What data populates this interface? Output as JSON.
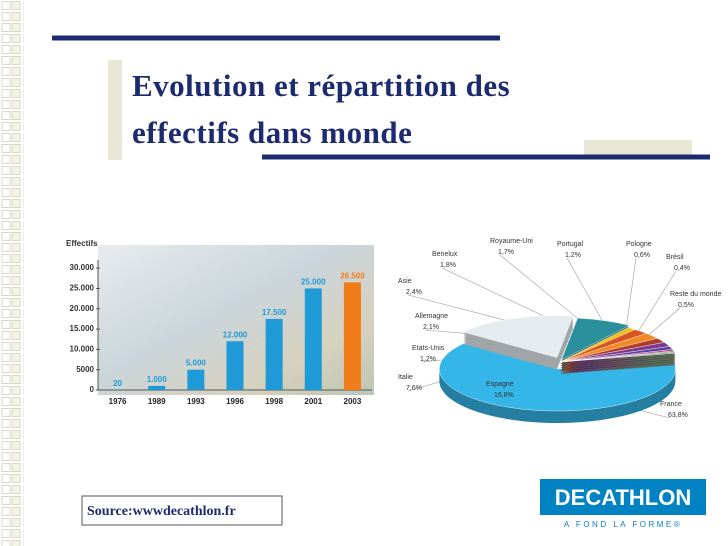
{
  "slide": {
    "title_lines": [
      "Evolution et répartition des",
      "effectifs  dans monde"
    ],
    "source": "Source:wwwdecathlon.fr",
    "logo": {
      "brand": "DECATHLON",
      "tagline": "A FOND LA FORME®"
    }
  },
  "chart_data": [
    {
      "type": "bar",
      "y_label": "Effectifs",
      "categories": [
        "1976",
        "1989",
        "1993",
        "1996",
        "1998",
        "2001",
        "2003"
      ],
      "values": [
        20,
        1000,
        5000,
        12000,
        17500,
        25000,
        26500
      ],
      "value_labels": [
        "20",
        "1.000",
        "5.000",
        "12.000",
        "17.500",
        "25.000",
        "26.500"
      ],
      "colors": [
        "#1f9ad6",
        "#1f9ad6",
        "#1f9ad6",
        "#1f9ad6",
        "#1f9ad6",
        "#1f9ad6",
        "#f07d1a"
      ],
      "ylim": [
        0,
        32000
      ],
      "yticks": [
        0,
        5000,
        {
          "value": 10000,
          "label": "10.000"
        },
        {
          "value": 15000,
          "label": "15.000"
        },
        {
          "value": 20000,
          "label": "20.000"
        },
        {
          "value": 25000,
          "label": "25.000"
        },
        {
          "value": 30000,
          "label": "30.000"
        }
      ]
    },
    {
      "type": "pie",
      "categories": [
        "France",
        "Espagne",
        "Italie",
        "Etats-Unis",
        "Allemagne",
        "Asie",
        "Benelux",
        "Royaume-Uni",
        "Portugal",
        "Pologne",
        "Brésil",
        "Reste du monde"
      ],
      "values": [
        63.8,
        16.8,
        7.6,
        1.2,
        2.1,
        2.4,
        1.8,
        1.7,
        1.2,
        0.6,
        0.4,
        0.5
      ],
      "value_labels": [
        "63,8%",
        "16,8%",
        "7,6%",
        "1,2%",
        "2,1%",
        "2,4%",
        "1,8%",
        "1,7%",
        "1,2%",
        "0,6%",
        "0,4%",
        "0,5%"
      ],
      "colors": [
        "#35b6e8",
        "#e4ecef",
        "#2a8f9a",
        "#f0c020",
        "#d9541e",
        "#f08a24",
        "#b03a2e",
        "#7a3b8f",
        "#5a3fa0",
        "#c22f8c",
        "#3b8e3b",
        "#9a9a9a"
      ]
    }
  ]
}
